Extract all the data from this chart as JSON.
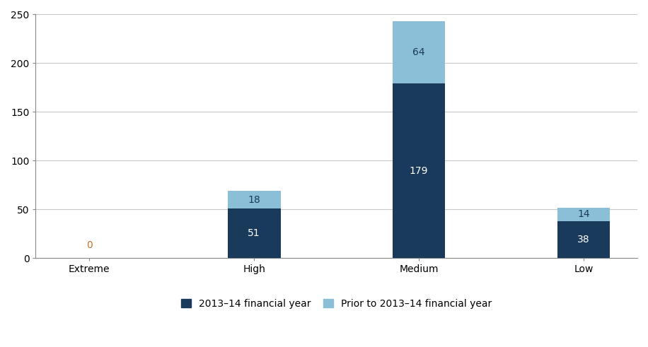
{
  "categories": [
    "Extreme",
    "High",
    "Medium",
    "Low"
  ],
  "current_year": [
    0,
    51,
    179,
    38
  ],
  "prior_year": [
    0,
    18,
    64,
    14
  ],
  "color_current": "#1a3a5c",
  "color_prior": "#8bbfd8",
  "ylim": [
    0,
    250
  ],
  "yticks": [
    0,
    50,
    100,
    150,
    200,
    250
  ],
  "legend_label_current": "2013–14 financial year",
  "legend_label_prior": "Prior to 2013–14 financial year",
  "bar_width": 0.32,
  "label_fontsize": 10,
  "tick_fontsize": 10,
  "legend_fontsize": 10,
  "background_color": "#ffffff",
  "grid_color": "#c8c8c8",
  "zero_label_color": "#c87030",
  "current_label_color": "#ffffff",
  "prior_label_color": "#1a3a5c"
}
